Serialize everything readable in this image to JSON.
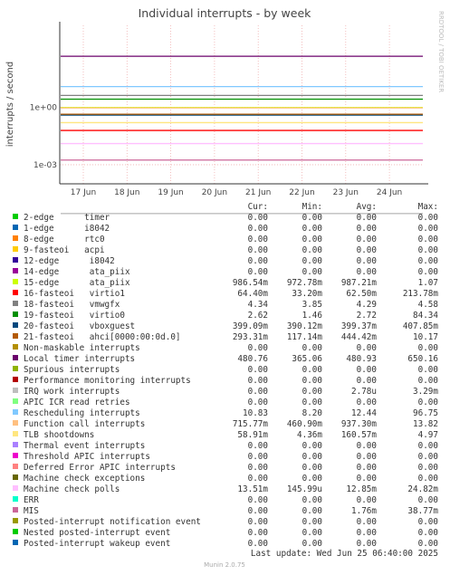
{
  "chart_data": {
    "type": "line",
    "title": "Individual interrupts - by week",
    "y_label": "interrupts / second",
    "log_scale": true,
    "grid": true,
    "ylim": [
      0.0001,
      20000
    ],
    "yticks": [
      {
        "value": 1,
        "label": "1e+00"
      },
      {
        "value": 0.001,
        "label": "1e-03"
      }
    ],
    "x_tick_labels": [
      "17 Jun",
      "18 Jun",
      "19 Jun",
      "20 Jun",
      "21 Jun",
      "22 Jun",
      "23 Jun",
      "24 Jun"
    ],
    "columns": [
      "Cur:",
      "Min:",
      "Avg:",
      "Max:"
    ],
    "series": [
      {
        "name": "2-edge      timer",
        "color": "#00cc00",
        "cur": "0.00",
        "min": "0.00",
        "avg": "0.00",
        "max": "0.00"
      },
      {
        "name": "1-edge      i8042",
        "color": "#0066b3",
        "cur": "0.00",
        "min": "0.00",
        "avg": "0.00",
        "max": "0.00"
      },
      {
        "name": "8-edge      rtc0",
        "color": "#ff8000",
        "cur": "0.00",
        "min": "0.00",
        "avg": "0.00",
        "max": "0.00"
      },
      {
        "name": "9-fasteoi   acpi",
        "color": "#ffcc00",
        "cur": "0.00",
        "min": "0.00",
        "avg": "0.00",
        "max": "0.00"
      },
      {
        "name": "12-edge      i8042",
        "color": "#330099",
        "cur": "0.00",
        "min": "0.00",
        "avg": "0.00",
        "max": "0.00"
      },
      {
        "name": "14-edge      ata_piix",
        "color": "#990099",
        "cur": "0.00",
        "min": "0.00",
        "avg": "0.00",
        "max": "0.00"
      },
      {
        "name": "15-edge      ata_piix",
        "color": "#ccff00",
        "cur": "986.54m",
        "min": "972.78m",
        "avg": "987.21m",
        "max": "1.07"
      },
      {
        "name": "16-fasteoi   virtio1",
        "color": "#ff0000",
        "cur": "64.40m",
        "min": "33.20m",
        "avg": "62.50m",
        "max": "213.78m"
      },
      {
        "name": "18-fasteoi   vmwgfx",
        "color": "#808080",
        "cur": "4.34",
        "min": "3.85",
        "avg": "4.29",
        "max": "4.58"
      },
      {
        "name": "19-fasteoi   virtio0",
        "color": "#008f00",
        "cur": "2.62",
        "min": "1.46",
        "avg": "2.72",
        "max": "84.34"
      },
      {
        "name": "20-fasteoi   vboxguest",
        "color": "#00487d",
        "cur": "399.09m",
        "min": "390.12m",
        "avg": "399.37m",
        "max": "407.85m"
      },
      {
        "name": "21-fasteoi   ahci[0000:00:0d.0]",
        "color": "#b35a00",
        "cur": "293.31m",
        "min": "117.14m",
        "avg": "444.42m",
        "max": "10.17"
      },
      {
        "name": "Non-maskable interrupts",
        "color": "#b38f00",
        "cur": "0.00",
        "min": "0.00",
        "avg": "0.00",
        "max": "0.00"
      },
      {
        "name": "Local timer interrupts",
        "color": "#6b006b",
        "cur": "480.76",
        "min": "365.06",
        "avg": "480.93",
        "max": "650.16"
      },
      {
        "name": "Spurious interrupts",
        "color": "#8fb300",
        "cur": "0.00",
        "min": "0.00",
        "avg": "0.00",
        "max": "0.00"
      },
      {
        "name": "Performance monitoring interrupts",
        "color": "#b30000",
        "cur": "0.00",
        "min": "0.00",
        "avg": "0.00",
        "max": "0.00"
      },
      {
        "name": "IRQ work interrupts",
        "color": "#bebebe",
        "cur": "0.00",
        "min": "0.00",
        "avg": "2.78u",
        "max": "3.29m"
      },
      {
        "name": "APIC ICR read retries",
        "color": "#80ff80",
        "cur": "0.00",
        "min": "0.00",
        "avg": "0.00",
        "max": "0.00"
      },
      {
        "name": "Rescheduling interrupts",
        "color": "#80c9ff",
        "cur": "10.83",
        "min": "8.20",
        "avg": "12.44",
        "max": "96.75"
      },
      {
        "name": "Function call interrupts",
        "color": "#ffc080",
        "cur": "715.77m",
        "min": "460.90m",
        "avg": "937.30m",
        "max": "13.82"
      },
      {
        "name": "TLB shootdowns",
        "color": "#ffe680",
        "cur": "58.91m",
        "min": "4.36m",
        "avg": "160.57m",
        "max": "4.97"
      },
      {
        "name": "Thermal event interrupts",
        "color": "#aa80ff",
        "cur": "0.00",
        "min": "0.00",
        "avg": "0.00",
        "max": "0.00"
      },
      {
        "name": "Threshold APIC interrupts",
        "color": "#ee00cc",
        "cur": "0.00",
        "min": "0.00",
        "avg": "0.00",
        "max": "0.00"
      },
      {
        "name": "Deferred Error APIC interrupts",
        "color": "#ff8080",
        "cur": "0.00",
        "min": "0.00",
        "avg": "0.00",
        "max": "0.00"
      },
      {
        "name": "Machine check exceptions",
        "color": "#666600",
        "cur": "0.00",
        "min": "0.00",
        "avg": "0.00",
        "max": "0.00"
      },
      {
        "name": "Machine check polls",
        "color": "#ffbfff",
        "cur": "13.51m",
        "min": "145.99u",
        "avg": "12.85m",
        "max": "24.82m"
      },
      {
        "name": "ERR",
        "color": "#00ffcc",
        "cur": "0.00",
        "min": "0.00",
        "avg": "0.00",
        "max": "0.00"
      },
      {
        "name": "MIS",
        "color": "#cc6699",
        "cur": "0.00",
        "min": "0.00",
        "avg": "1.76m",
        "max": "38.77m"
      },
      {
        "name": "Posted-interrupt notification event",
        "color": "#999900",
        "cur": "0.00",
        "min": "0.00",
        "avg": "0.00",
        "max": "0.00"
      },
      {
        "name": "Nested posted-interrupt event",
        "color": "#00cc00",
        "cur": "0.00",
        "min": "0.00",
        "avg": "0.00",
        "max": "0.00"
      },
      {
        "name": "Posted-interrupt wakeup event",
        "color": "#0066b3",
        "cur": "0.00",
        "min": "0.00",
        "avg": "0.00",
        "max": "0.00"
      }
    ],
    "last_update": "Last update: Wed Jun 25 06:40:00 2025",
    "version": "Munin 2.0.75",
    "side_text": "RRDTOOL / TOBI OETIKER"
  }
}
